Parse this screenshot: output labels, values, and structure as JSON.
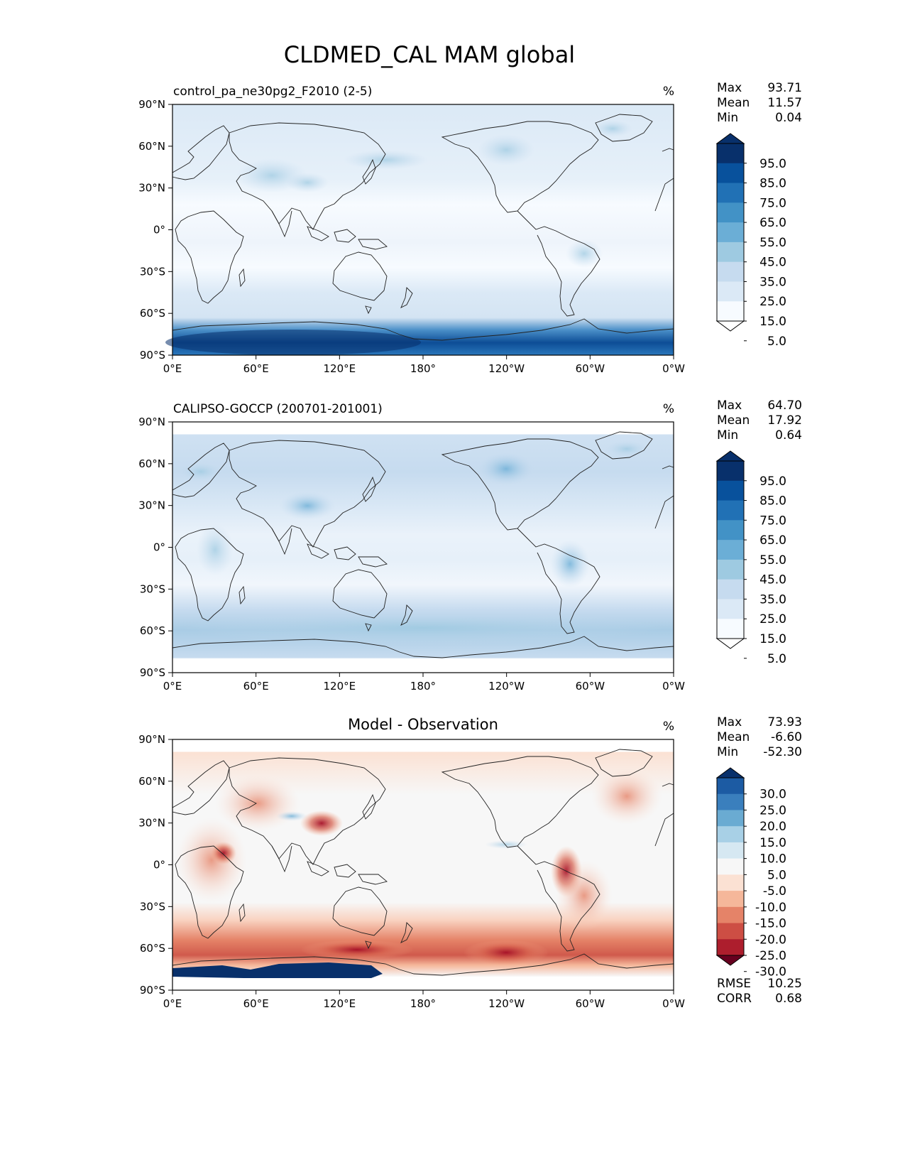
{
  "title": "CLDMED_CAL MAM global",
  "x_ticks": [
    "0°E",
    "60°E",
    "120°E",
    "180°",
    "120°W",
    "60°W",
    "0°W"
  ],
  "y_ticks": [
    "90°N",
    "60°N",
    "30°N",
    "0°",
    "30°S",
    "60°S",
    "90°S"
  ],
  "panels": [
    {
      "id": "model",
      "title": "control_pa_ne30pg2_F2010 (2-5)",
      "title_loc": "left",
      "units": "%",
      "stats": [
        {
          "label": "Max",
          "value": "93.71"
        },
        {
          "label": "Mean",
          "value": "11.57"
        },
        {
          "label": "Min",
          "value": "0.04"
        }
      ],
      "colorbar": {
        "labels": [
          "95.0",
          "85.0",
          "75.0",
          "65.0",
          "55.0",
          "45.0",
          "35.0",
          "25.0",
          "15.0",
          "5.0"
        ],
        "colors": [
          "#08306b",
          "#08519c",
          "#2171b5",
          "#4292c6",
          "#6baed6",
          "#9ecae1",
          "#c6dbef",
          "#dbe9f6",
          "#f7fbff"
        ],
        "top_color": "#08306b",
        "bottom_color": "#ffffff"
      },
      "extra_stats": []
    },
    {
      "id": "obs",
      "title": "CALIPSO-GOCCP (200701-201001)",
      "title_loc": "left",
      "units": "%",
      "stats": [
        {
          "label": "Max",
          "value": "64.70"
        },
        {
          "label": "Mean",
          "value": "17.92"
        },
        {
          "label": "Min",
          "value": "0.64"
        }
      ],
      "colorbar": {
        "labels": [
          "95.0",
          "85.0",
          "75.0",
          "65.0",
          "55.0",
          "45.0",
          "35.0",
          "25.0",
          "15.0",
          "5.0"
        ],
        "colors": [
          "#08306b",
          "#08519c",
          "#2171b5",
          "#4292c6",
          "#6baed6",
          "#9ecae1",
          "#c6dbef",
          "#dbe9f6",
          "#f7fbff"
        ],
        "top_color": "#08306b",
        "bottom_color": "#ffffff"
      },
      "extra_stats": []
    },
    {
      "id": "diff",
      "title": "Model - Observation",
      "title_loc": "center",
      "units": "%",
      "stats": [
        {
          "label": "Max",
          "value": "73.93"
        },
        {
          "label": "Mean",
          "value": "-6.60"
        },
        {
          "label": "Min",
          "value": "-52.30"
        }
      ],
      "colorbar": {
        "labels": [
          "30.0",
          "25.0",
          "20.0",
          "15.0",
          "10.0",
          "5.0",
          "-5.0",
          "-10.0",
          "-15.0",
          "-20.0",
          "-25.0",
          "-30.0"
        ],
        "colors": [
          "#1c5ba3",
          "#3a7fbd",
          "#6aabd2",
          "#a8d0e6",
          "#d6e8f2",
          "#f7f7f7",
          "#fbe1d3",
          "#f5b79a",
          "#e58368",
          "#cd4e44",
          "#ad1e2d"
        ],
        "top_color": "#08306b",
        "bottom_color": "#67001f"
      },
      "extra_stats": [
        {
          "label": "RMSE",
          "value": "10.25"
        },
        {
          "label": "CORR",
          "value": "0.68"
        }
      ]
    }
  ]
}
